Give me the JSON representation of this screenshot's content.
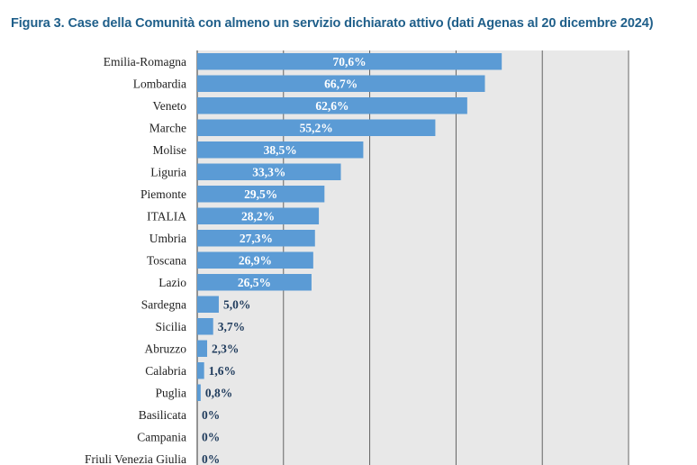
{
  "title": "Figura 3. Case della Comunità con almeno un servizio dichiarato attivo (dati Agenas al 20 dicembre 2024)",
  "chart_data": {
    "type": "bar",
    "orientation": "horizontal",
    "categories": [
      "Emilia-Romagna",
      "Lombardia",
      "Veneto",
      "Marche",
      "Molise",
      "Liguria",
      "Piemonte",
      "ITALIA",
      "Umbria",
      "Toscana",
      "Lazio",
      "Sardegna",
      "Sicilia",
      "Abruzzo",
      "Calabria",
      "Puglia",
      "Basilicata",
      "Campania",
      "Friuli Venezia Giulia"
    ],
    "values": [
      70.6,
      66.7,
      62.6,
      55.2,
      38.5,
      33.3,
      29.5,
      28.2,
      27.3,
      26.9,
      26.5,
      5.0,
      3.7,
      2.3,
      1.6,
      0.8,
      0,
      0,
      0
    ],
    "value_labels": [
      "70,6%",
      "66,7%",
      "62,6%",
      "55,2%",
      "38,5%",
      "33,3%",
      "29,5%",
      "28,2%",
      "27,3%",
      "26,9%",
      "26,5%",
      "5,0%",
      "3,7%",
      "2,3%",
      "1,6%",
      "0,8%",
      "0%",
      "0%",
      "0%"
    ],
    "xlim": [
      0,
      100
    ],
    "grid": true,
    "colors": {
      "bar": "#5b9bd5",
      "plot_background": "#e8e8e8",
      "label_inside": "#ffffff",
      "label_outside": "#1f3b5c",
      "gridline": "#555555"
    }
  }
}
